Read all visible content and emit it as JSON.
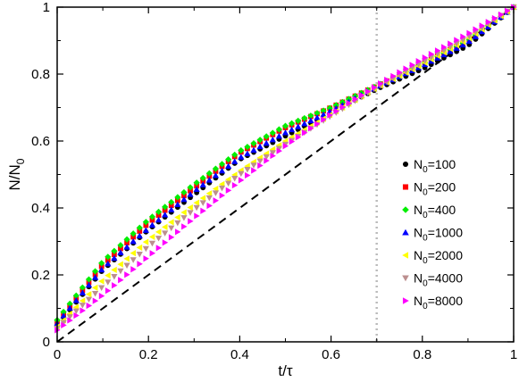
{
  "chart_data": {
    "type": "scatter",
    "title": "",
    "xlabel": "t/τ",
    "ylabel": "N/N0",
    "xlim": [
      0,
      1
    ],
    "ylim": [
      0,
      1
    ],
    "xticks": [
      "0",
      "0.2",
      "0.4",
      "0.6",
      "0.8",
      "1"
    ],
    "yticks": [
      "0",
      "0.2",
      "0.4",
      "0.6",
      "0.8",
      "1"
    ],
    "grid": false,
    "legend_position": "right",
    "annotations": {
      "diagonal": {
        "style": "dashed",
        "color": "#000000",
        "from": [
          0,
          0
        ],
        "to": [
          1,
          1
        ]
      },
      "vertical_line": {
        "x": 0.7,
        "style": "dotted",
        "color": "#bbbbbb"
      }
    },
    "series": [
      {
        "name": "N0=100",
        "label_base": "N",
        "label_sub": "0",
        "label_rest": "=100",
        "color": "#000000",
        "marker": "circle",
        "x": [
          0,
          0.1,
          0.2,
          0.3,
          0.4,
          0.5,
          0.6,
          0.7,
          0.8,
          0.9,
          1.0
        ],
        "y": [
          0.05,
          0.215,
          0.335,
          0.44,
          0.545,
          0.615,
          0.685,
          0.755,
          0.815,
          0.885,
          1.0
        ]
      },
      {
        "name": "N0=200",
        "label_base": "N",
        "label_sub": "0",
        "label_rest": "=200",
        "color": "#ff0000",
        "marker": "square",
        "x": [
          0,
          0.1,
          0.2,
          0.3,
          0.4,
          0.5,
          0.6,
          0.7,
          0.8,
          0.9,
          1.0
        ],
        "y": [
          0.06,
          0.23,
          0.355,
          0.46,
          0.565,
          0.64,
          0.7,
          0.765,
          0.83,
          0.9,
          1.0
        ]
      },
      {
        "name": "N0=400",
        "label_base": "N",
        "label_sub": "0",
        "label_rest": "=400",
        "color": "#00ee00",
        "marker": "diamond",
        "x": [
          0,
          0.1,
          0.2,
          0.3,
          0.4,
          0.5,
          0.6,
          0.7,
          0.8,
          0.9,
          1.0
        ],
        "y": [
          0.065,
          0.24,
          0.365,
          0.47,
          0.57,
          0.645,
          0.7,
          0.765,
          0.83,
          0.9,
          1.0
        ]
      },
      {
        "name": "N0=1000",
        "label_base": "N",
        "label_sub": "0",
        "label_rest": "=1000",
        "color": "#0000ff",
        "marker": "triangle-up",
        "x": [
          0,
          0.1,
          0.2,
          0.3,
          0.4,
          0.5,
          0.6,
          0.7,
          0.8,
          0.9,
          1.0
        ],
        "y": [
          0.055,
          0.22,
          0.34,
          0.45,
          0.55,
          0.625,
          0.69,
          0.76,
          0.825,
          0.895,
          1.0
        ]
      },
      {
        "name": "N0=2000",
        "label_base": "N",
        "label_sub": "0",
        "label_rest": "=2000",
        "color": "#ffff00",
        "marker": "triangle-left",
        "x": [
          0,
          0.1,
          0.2,
          0.3,
          0.4,
          0.5,
          0.6,
          0.7,
          0.8,
          0.9,
          1.0
        ],
        "y": [
          0.045,
          0.185,
          0.305,
          0.41,
          0.51,
          0.6,
          0.68,
          0.76,
          0.83,
          0.905,
          1.0
        ]
      },
      {
        "name": "N0=4000",
        "label_base": "N",
        "label_sub": "0",
        "label_rest": "=4000",
        "color": "#bc8f8f",
        "marker": "triangle-down",
        "x": [
          0,
          0.1,
          0.2,
          0.3,
          0.4,
          0.5,
          0.6,
          0.7,
          0.8,
          0.9,
          1.0
        ],
        "y": [
          0.04,
          0.165,
          0.285,
          0.395,
          0.5,
          0.59,
          0.675,
          0.76,
          0.835,
          0.91,
          1.0
        ]
      },
      {
        "name": "N0=8000",
        "label_base": "N",
        "label_sub": "0",
        "label_rest": "=8000",
        "color": "#ff00ff",
        "marker": "triangle-right",
        "x": [
          0,
          0.1,
          0.2,
          0.3,
          0.4,
          0.5,
          0.6,
          0.7,
          0.8,
          0.9,
          1.0
        ],
        "y": [
          0.035,
          0.14,
          0.255,
          0.37,
          0.48,
          0.585,
          0.68,
          0.765,
          0.845,
          0.92,
          1.0
        ]
      }
    ]
  }
}
